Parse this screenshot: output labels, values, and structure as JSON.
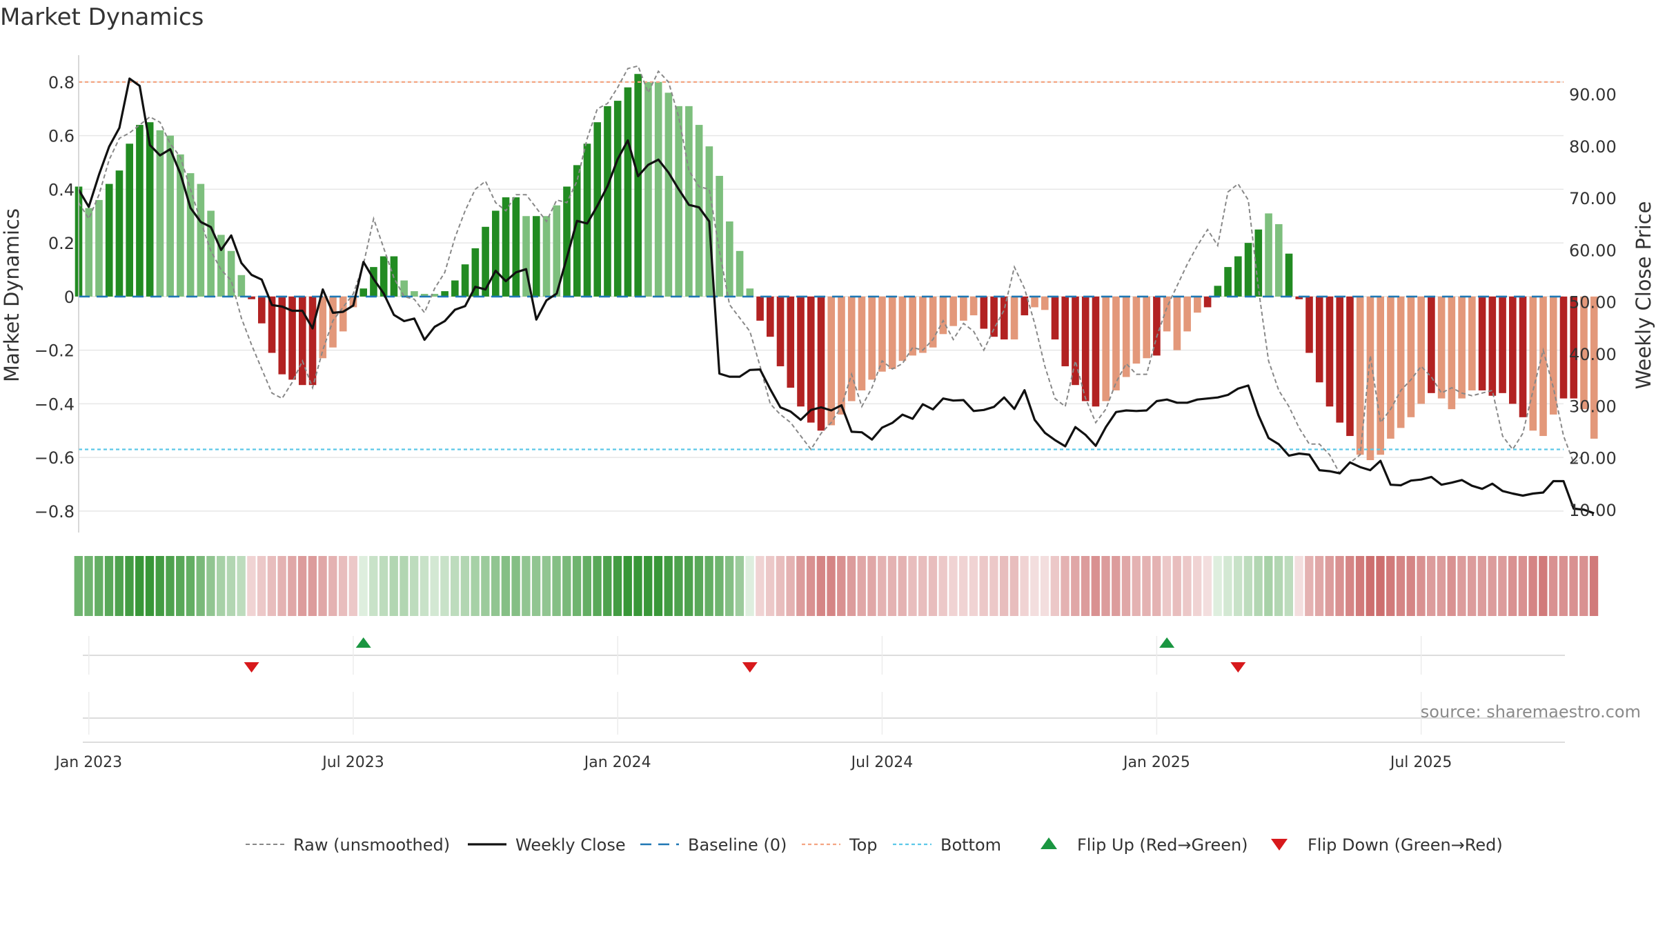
{
  "chart_data": {
    "type": "bar",
    "title": "Market Dynamics",
    "ylabel": "Market Dynamics",
    "y2label": "Weekly Close Price",
    "ylim": [
      -0.88,
      0.9
    ],
    "y2lim": [
      5.6,
      97.5
    ],
    "y_ticks": [
      -0.8,
      -0.6,
      -0.4,
      -0.2,
      0,
      0.2,
      0.4,
      0.6,
      0.8
    ],
    "y_tick_labels": [
      "−0.8",
      "−0.6",
      "−0.4",
      "−0.2",
      "0",
      "0.2",
      "0.4",
      "0.6",
      "0.8"
    ],
    "y2_ticks": [
      10,
      20,
      30,
      40,
      50,
      60,
      70,
      80,
      90
    ],
    "y2_tick_labels": [
      "10.00",
      "20.00",
      "30.00",
      "40.00",
      "50.00",
      "60.00",
      "70.00",
      "80.00",
      "90.00"
    ],
    "x_ticks": [
      "2023-01-02",
      "2023-07-03",
      "2024-01-01",
      "2024-07-01",
      "2025-01-06",
      "2025-07-07"
    ],
    "x_tick_labels": [
      "Jan 2023",
      "Jul 2023",
      "Jan 2024",
      "Jul 2024",
      "Jan 2025",
      "Jul 2025"
    ],
    "x_range": [
      "2022-12-26",
      "2025-10-13"
    ],
    "first_week": "2022-12-26",
    "top_threshold": 0.8,
    "bottom_threshold": -0.57,
    "grid": true,
    "legend_position": "bottom",
    "source": "source: sharemaestro.com",
    "legend": [
      {
        "label": "Raw (unsmoothed)",
        "key": "raw"
      },
      {
        "label": "Weekly Close",
        "key": "close"
      },
      {
        "label": "Baseline (0)",
        "key": "baseline"
      },
      {
        "label": "Top",
        "key": "top"
      },
      {
        "label": "Bottom",
        "key": "bottom"
      },
      {
        "label": "Flip Up (Red→Green)",
        "key": "flipup"
      },
      {
        "label": "Flip Down (Green→Red)",
        "key": "flipdown"
      }
    ],
    "colors": {
      "strong_up": "#228b22",
      "weak_up": "#7dbf7d",
      "strong_down": "#b22222",
      "weak_down": "#e3987a",
      "close": "#111111",
      "raw": "#888888",
      "baseline": "#1f77b4",
      "top": "#f4a582",
      "bottom": "#5bc8e8",
      "flip_up": "#1a9641",
      "flip_down": "#d7191c",
      "grid": "#e6e6e6"
    },
    "series": [
      {
        "name": "Market Dynamics",
        "values": [
          0.41,
          0.33,
          0.36,
          0.42,
          0.47,
          0.57,
          0.64,
          0.65,
          0.62,
          0.6,
          0.53,
          0.46,
          0.42,
          0.32,
          0.23,
          0.17,
          0.08,
          -0.01,
          -0.1,
          -0.21,
          -0.29,
          -0.31,
          -0.33,
          -0.33,
          -0.23,
          -0.19,
          -0.13,
          -0.04,
          0.03,
          0.11,
          0.15,
          0.15,
          0.06,
          0.02,
          0.01,
          0.01,
          0.02,
          0.06,
          0.12,
          0.18,
          0.26,
          0.32,
          0.37,
          0.37,
          0.3,
          0.3,
          0.3,
          0.34,
          0.41,
          0.49,
          0.57,
          0.65,
          0.71,
          0.73,
          0.78,
          0.83,
          0.8,
          0.8,
          0.76,
          0.71,
          0.71,
          0.64,
          0.56,
          0.45,
          0.28,
          0.17,
          0.03,
          -0.09,
          -0.15,
          -0.26,
          -0.34,
          -0.41,
          -0.47,
          -0.5,
          -0.48,
          -0.44,
          -0.39,
          -0.35,
          -0.31,
          -0.28,
          -0.27,
          -0.24,
          -0.22,
          -0.21,
          -0.19,
          -0.14,
          -0.11,
          -0.09,
          -0.07,
          -0.12,
          -0.15,
          -0.16,
          -0.16,
          -0.07,
          -0.04,
          -0.05,
          -0.16,
          -0.26,
          -0.33,
          -0.39,
          -0.41,
          -0.39,
          -0.35,
          -0.3,
          -0.25,
          -0.23,
          -0.22,
          -0.13,
          -0.2,
          -0.13,
          -0.06,
          -0.04,
          0.04,
          0.11,
          0.15,
          0.2,
          0.25,
          0.31,
          0.27,
          0.16,
          -0.01,
          -0.21,
          -0.32,
          -0.41,
          -0.47,
          -0.52,
          -0.59,
          -0.61,
          -0.59,
          -0.53,
          -0.49,
          -0.45,
          -0.4,
          -0.36,
          -0.38,
          -0.42,
          -0.38,
          -0.35,
          -0.35,
          -0.37,
          -0.36,
          -0.4,
          -0.45,
          -0.5,
          -0.52,
          -0.44,
          -0.38,
          -0.38,
          -0.42,
          -0.53
        ],
        "strength": [
          1,
          0,
          0,
          1,
          1,
          1,
          1,
          1,
          0,
          0,
          0,
          0,
          0,
          0,
          0,
          0,
          0,
          1,
          1,
          1,
          1,
          1,
          1,
          1,
          0,
          0,
          0,
          0,
          1,
          1,
          1,
          1,
          0,
          0,
          0,
          0,
          1,
          1,
          1,
          1,
          1,
          1,
          1,
          1,
          0,
          1,
          0,
          0,
          1,
          1,
          1,
          1,
          1,
          1,
          1,
          1,
          0,
          0,
          0,
          0,
          0,
          0,
          0,
          0,
          0,
          0,
          0,
          1,
          1,
          1,
          1,
          1,
          1,
          1,
          0,
          0,
          0,
          0,
          0,
          0,
          0,
          0,
          0,
          0,
          0,
          0,
          0,
          0,
          0,
          1,
          1,
          1,
          0,
          1,
          0,
          0,
          1,
          1,
          1,
          1,
          1,
          0,
          0,
          0,
          0,
          0,
          1,
          0,
          0,
          0,
          0,
          1,
          1,
          1,
          1,
          1,
          1,
          0,
          0,
          1,
          1,
          1,
          1,
          1,
          1,
          1,
          0,
          0,
          0,
          0,
          0,
          0,
          0,
          1,
          0,
          0,
          0,
          0,
          1,
          1,
          1,
          1,
          1,
          0,
          0,
          0,
          1,
          1
        ]
      },
      {
        "name": "Raw (unsmoothed)",
        "values": [
          0.35,
          0.29,
          0.38,
          0.51,
          0.59,
          0.61,
          0.64,
          0.67,
          0.65,
          0.57,
          0.52,
          0.4,
          0.28,
          0.17,
          0.1,
          0.06,
          -0.08,
          -0.18,
          -0.27,
          -0.36,
          -0.38,
          -0.32,
          -0.24,
          -0.34,
          -0.2,
          -0.09,
          -0.04,
          0.01,
          0.12,
          0.29,
          0.18,
          0.07,
          0.0,
          -0.01,
          -0.06,
          0.03,
          0.09,
          0.22,
          0.32,
          0.4,
          0.43,
          0.35,
          0.32,
          0.38,
          0.38,
          0.33,
          0.28,
          0.36,
          0.35,
          0.43,
          0.59,
          0.7,
          0.72,
          0.78,
          0.85,
          0.86,
          0.76,
          0.84,
          0.8,
          0.67,
          0.47,
          0.41,
          0.4,
          0.17,
          -0.03,
          -0.08,
          -0.13,
          -0.26,
          -0.4,
          -0.44,
          -0.47,
          -0.52,
          -0.57,
          -0.51,
          -0.47,
          -0.41,
          -0.29,
          -0.41,
          -0.34,
          -0.24,
          -0.27,
          -0.25,
          -0.19,
          -0.2,
          -0.16,
          -0.09,
          -0.16,
          -0.1,
          -0.13,
          -0.2,
          -0.12,
          -0.05,
          0.11,
          0.03,
          -0.1,
          -0.26,
          -0.38,
          -0.41,
          -0.24,
          -0.38,
          -0.47,
          -0.42,
          -0.32,
          -0.25,
          -0.29,
          -0.29,
          -0.15,
          -0.04,
          0.04,
          0.12,
          0.19,
          0.25,
          0.19,
          0.39,
          0.42,
          0.36,
          0.03,
          -0.24,
          -0.35,
          -0.41,
          -0.49,
          -0.55,
          -0.55,
          -0.59,
          -0.66,
          -0.62,
          -0.59,
          -0.22,
          -0.47,
          -0.42,
          -0.35,
          -0.31,
          -0.26,
          -0.3,
          -0.36,
          -0.34,
          -0.36,
          -0.37,
          -0.36,
          -0.35,
          -0.52,
          -0.57,
          -0.51,
          -0.35,
          -0.2,
          -0.34,
          -0.52,
          -0.62,
          -0.59
        ]
      },
      {
        "name": "Weekly Close",
        "values": [
          71.6,
          68.3,
          74.5,
          79.9,
          83.5,
          93.0,
          91.6,
          80.2,
          78.2,
          79.4,
          74.7,
          68.1,
          65.4,
          64.4,
          60.0,
          62.8,
          57.5,
          55.2,
          54.3,
          49.4,
          49.1,
          48.3,
          48.3,
          44.9,
          52.4,
          47.9,
          48.1,
          49.3,
          57.7,
          54.4,
          51.6,
          47.5,
          46.3,
          46.8,
          42.7,
          45.2,
          46.3,
          48.5,
          49.2,
          52.9,
          52.4,
          56.0,
          54.0,
          55.7,
          56.3,
          46.6,
          50.3,
          51.6,
          58.5,
          65.6,
          65.1,
          68.5,
          72.3,
          77.5,
          81.1,
          74.2,
          76.4,
          77.4,
          74.9,
          71.7,
          68.7,
          68.2,
          65.5,
          36.2,
          35.6,
          35.6,
          36.9,
          37.0,
          33.2,
          29.7,
          28.9,
          27.3,
          29.2,
          29.7,
          29.1,
          30.1,
          25.0,
          24.9,
          23.5,
          25.8,
          26.7,
          28.3,
          27.5,
          30.3,
          29.3,
          31.4,
          31.0,
          31.1,
          29.0,
          29.2,
          29.8,
          31.6,
          29.4,
          33.0,
          27.3,
          24.8,
          23.4,
          22.2,
          25.9,
          24.4,
          22.3,
          25.9,
          28.8,
          29.1,
          29.0,
          29.1,
          30.9,
          31.2,
          30.6,
          30.6,
          31.2,
          31.4,
          31.6,
          32.1,
          33.3,
          33.9,
          28.2,
          23.8,
          22.6,
          20.4,
          20.8,
          20.6,
          17.6,
          17.4,
          17.0,
          19.1,
          18.2,
          17.6,
          19.4,
          14.8,
          14.7,
          15.6,
          15.8,
          16.3,
          14.8,
          15.2,
          15.7,
          14.6,
          14.0,
          15.0,
          13.6,
          13.1,
          12.7,
          13.1,
          13.3,
          15.5,
          15.5,
          10.2,
          10.0,
          9.3
        ]
      }
    ],
    "band_intensity": [
      0.65,
      0.65,
      0.7,
      0.75,
      0.8,
      0.85,
      0.9,
      0.9,
      0.85,
      0.8,
      0.75,
      0.7,
      0.6,
      0.5,
      0.4,
      0.35,
      0.3,
      0.2,
      0.25,
      0.3,
      0.35,
      0.4,
      0.45,
      0.45,
      0.4,
      0.35,
      0.3,
      0.25,
      0.15,
      0.25,
      0.3,
      0.35,
      0.35,
      0.3,
      0.25,
      0.2,
      0.25,
      0.3,
      0.35,
      0.4,
      0.45,
      0.5,
      0.55,
      0.55,
      0.5,
      0.5,
      0.5,
      0.55,
      0.6,
      0.65,
      0.7,
      0.75,
      0.8,
      0.85,
      0.9,
      0.9,
      0.9,
      0.9,
      0.85,
      0.8,
      0.8,
      0.75,
      0.7,
      0.65,
      0.55,
      0.45,
      0.15,
      0.2,
      0.25,
      0.3,
      0.35,
      0.45,
      0.5,
      0.55,
      0.55,
      0.5,
      0.45,
      0.4,
      0.4,
      0.35,
      0.35,
      0.35,
      0.3,
      0.3,
      0.3,
      0.25,
      0.2,
      0.2,
      0.2,
      0.25,
      0.25,
      0.3,
      0.3,
      0.2,
      0.15,
      0.15,
      0.25,
      0.35,
      0.4,
      0.45,
      0.5,
      0.45,
      0.45,
      0.4,
      0.35,
      0.35,
      0.35,
      0.25,
      0.3,
      0.25,
      0.2,
      0.15,
      0.15,
      0.2,
      0.25,
      0.3,
      0.35,
      0.4,
      0.35,
      0.3,
      0.15,
      0.35,
      0.4,
      0.45,
      0.5,
      0.55,
      0.6,
      0.65,
      0.65,
      0.6,
      0.55,
      0.55,
      0.5,
      0.45,
      0.45,
      0.5,
      0.45,
      0.45,
      0.45,
      0.45,
      0.45,
      0.5,
      0.5,
      0.55,
      0.6,
      0.5,
      0.5,
      0.5,
      0.5,
      0.6
    ],
    "flips": [
      {
        "direction": "down",
        "week": 17
      },
      {
        "direction": "up",
        "week": 28
      },
      {
        "direction": "down",
        "week": 66
      },
      {
        "direction": "up",
        "week": 107
      },
      {
        "direction": "down",
        "week": 114
      }
    ]
  }
}
